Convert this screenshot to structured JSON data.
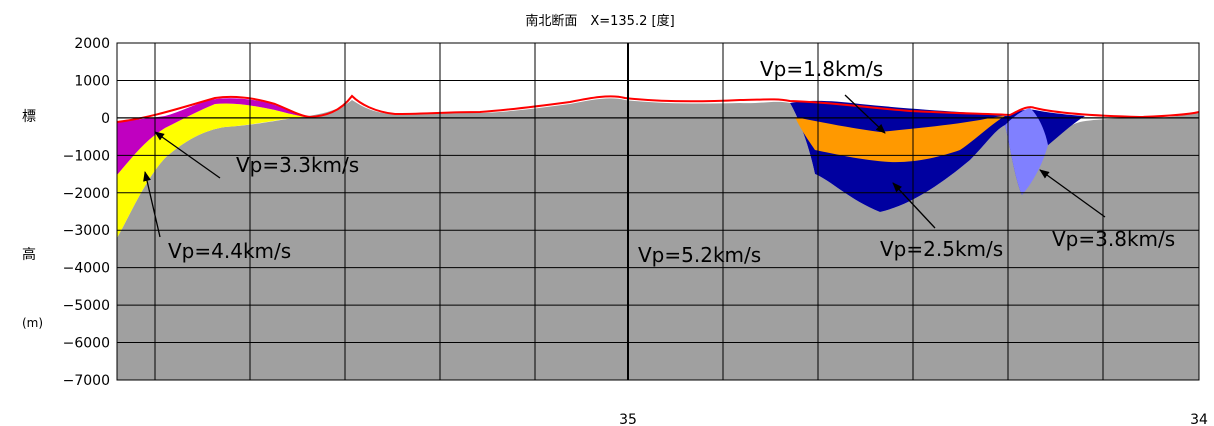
{
  "chart_data": {
    "type": "area",
    "title": "南北断面　X=135.2 [度]",
    "ylabel_chars": [
      "標",
      "高",
      "(m)"
    ],
    "ylim": [
      -7000,
      2000
    ],
    "yticks": [
      2000,
      1000,
      0,
      -1000,
      -2000,
      -3000,
      -4000,
      -5000,
      -6000,
      -7000
    ],
    "xticks": [
      "35",
      "34"
    ],
    "grid": true,
    "colors": {
      "basement": "#a0a0a0",
      "vp44": "#ffff00",
      "vp33": "#c000c0",
      "vp25": "#0000a0",
      "vp18": "#ff9900",
      "vp38": "#8080ff",
      "topography": "#ff0000"
    },
    "annotations": [
      {
        "text": "Vp=1.8km/s"
      },
      {
        "text": "Vp=3.3km/s"
      },
      {
        "text": "Vp=4.4km/s"
      },
      {
        "text": "Vp=5.2km/s"
      },
      {
        "text": "Vp=2.5km/s"
      },
      {
        "text": "Vp=3.8km/s"
      }
    ]
  }
}
